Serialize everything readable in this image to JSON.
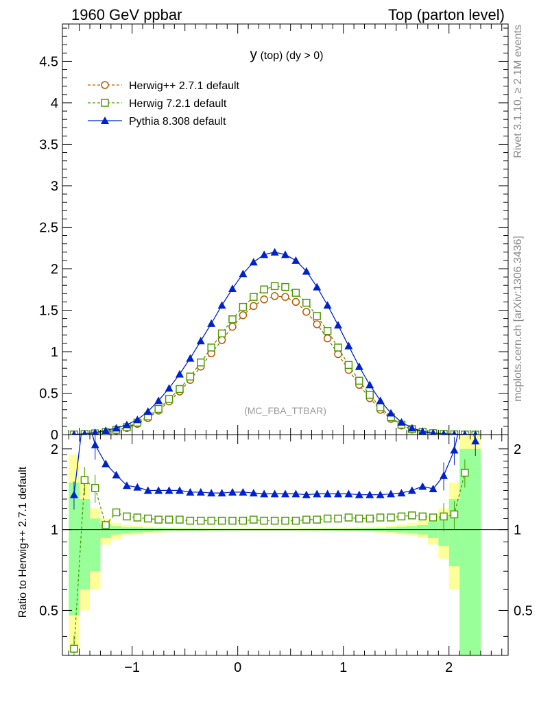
{
  "header": {
    "left_title": "1960 GeV ppbar",
    "right_title": "Top (parton level)"
  },
  "side_labels": {
    "rivet": "Rivet 3.1.10, ≥ 2.1M events",
    "mcplots": "mcplots.cern.ch [arXiv:1306.3436]"
  },
  "plot_title": {
    "main": "y",
    "sub": " (top) (dy > 0)"
  },
  "analysis_label": "(MC_FBA_TTBAR)",
  "ratio_ylabel": "Ratio to Herwig++ 2.7.1 default",
  "legend": [
    {
      "name": "Herwig++ 2.7.1 default",
      "color": "#b35900",
      "marker": "circle-open",
      "dash": true
    },
    {
      "name": "Herwig 7.2.1 default",
      "color": "#4d9900",
      "marker": "square-open",
      "dash": true
    },
    {
      "name": "Pythia 8.308 default",
      "color": "#0022cc",
      "marker": "triangle-filled",
      "dash": false
    }
  ],
  "bands": {
    "inner": "#99ff99",
    "outer": "#ffff99"
  },
  "chart_data": [
    {
      "type": "line",
      "panel": "main",
      "xlim": [
        -1.66,
        2.56
      ],
      "ylim": [
        0,
        4.95
      ],
      "yticks": [
        0,
        0.5,
        1,
        1.5,
        2,
        2.5,
        3,
        3.5,
        4,
        4.5
      ],
      "ytick_labels": [
        "0",
        "0.5",
        "1",
        "1.5",
        "2",
        "2.5",
        "3",
        "3.5",
        "4",
        "4.5"
      ],
      "x": [
        -1.55,
        -1.45,
        -1.35,
        -1.25,
        -1.15,
        -1.05,
        -0.95,
        -0.85,
        -0.75,
        -0.65,
        -0.55,
        -0.45,
        -0.35,
        -0.25,
        -0.15,
        -0.05,
        0.05,
        0.15,
        0.25,
        0.35,
        0.45,
        0.55,
        0.65,
        0.75,
        0.85,
        0.95,
        1.05,
        1.15,
        1.25,
        1.35,
        1.45,
        1.55,
        1.65,
        1.75,
        1.85,
        1.95,
        2.05,
        2.15,
        2.25
      ],
      "series": [
        {
          "name": "Herwig++ 2.7.1 default",
          "values": [
            0.002,
            0.005,
            0.012,
            0.03,
            0.05,
            0.08,
            0.13,
            0.2,
            0.29,
            0.4,
            0.52,
            0.66,
            0.82,
            0.98,
            1.14,
            1.3,
            1.44,
            1.55,
            1.63,
            1.67,
            1.66,
            1.6,
            1.48,
            1.33,
            1.16,
            0.97,
            0.78,
            0.6,
            0.44,
            0.3,
            0.19,
            0.11,
            0.06,
            0.03,
            0.015,
            0.007,
            0.003,
            0.001,
            0.0005
          ]
        },
        {
          "name": "Herwig 7.2.1 default",
          "values": [
            0.002,
            0.006,
            0.015,
            0.032,
            0.058,
            0.09,
            0.145,
            0.22,
            0.31,
            0.43,
            0.55,
            0.7,
            0.87,
            1.05,
            1.22,
            1.39,
            1.54,
            1.66,
            1.75,
            1.79,
            1.78,
            1.71,
            1.59,
            1.43,
            1.25,
            1.05,
            0.84,
            0.65,
            0.48,
            0.33,
            0.21,
            0.12,
            0.066,
            0.034,
            0.017,
            0.008,
            0.004,
            0.0015,
            0.0006
          ]
        },
        {
          "name": "Pythia 8.308 default",
          "values": [
            0.003,
            0.01,
            0.025,
            0.05,
            0.08,
            0.12,
            0.18,
            0.28,
            0.41,
            0.56,
            0.73,
            0.92,
            1.13,
            1.34,
            1.56,
            1.76,
            1.94,
            2.08,
            2.17,
            2.2,
            2.17,
            2.1,
            1.97,
            1.78,
            1.56,
            1.32,
            1.07,
            0.82,
            0.6,
            0.41,
            0.26,
            0.15,
            0.08,
            0.04,
            0.02,
            0.01,
            0.005,
            0.002,
            0.001
          ]
        }
      ]
    },
    {
      "type": "line",
      "panel": "ratio",
      "xlim": [
        -1.66,
        2.56
      ],
      "ylim": [
        0.34,
        2.26
      ],
      "log_y": true,
      "yticks": [
        0.5,
        1,
        2
      ],
      "ytick_labels": [
        "0.5",
        "1",
        "2"
      ],
      "xticks": [
        -1,
        0,
        1,
        2
      ],
      "xtick_labels": [
        "−1",
        "0",
        "1",
        "2"
      ],
      "x": [
        -1.55,
        -1.45,
        -1.35,
        -1.25,
        -1.15,
        -1.05,
        -0.95,
        -0.85,
        -0.75,
        -0.65,
        -0.55,
        -0.45,
        -0.35,
        -0.25,
        -0.15,
        -0.05,
        0.05,
        0.15,
        0.25,
        0.35,
        0.45,
        0.55,
        0.65,
        0.75,
        0.85,
        0.95,
        1.05,
        1.15,
        1.25,
        1.35,
        1.45,
        1.55,
        1.65,
        1.75,
        1.85,
        1.95,
        2.05,
        2.15,
        2.25
      ],
      "series": [
        {
          "name": "Herwig 7.2.1 default",
          "values": [
            0.36,
            1.53,
            1.43,
            1.04,
            1.16,
            1.12,
            1.11,
            1.1,
            1.09,
            1.09,
            1.09,
            1.08,
            1.08,
            1.08,
            1.08,
            1.08,
            1.08,
            1.09,
            1.08,
            1.08,
            1.08,
            1.08,
            1.09,
            1.09,
            1.1,
            1.1,
            1.11,
            1.1,
            1.1,
            1.11,
            1.11,
            1.12,
            1.13,
            1.12,
            1.11,
            1.12,
            1.14,
            1.63,
            null
          ]
        },
        {
          "name": "Pythia 8.308 default",
          "values": [
            1.35,
            2.9,
            2.07,
            1.76,
            1.6,
            1.46,
            1.44,
            1.4,
            1.4,
            1.4,
            1.4,
            1.38,
            1.38,
            1.37,
            1.37,
            1.38,
            1.38,
            1.37,
            1.36,
            1.36,
            1.36,
            1.36,
            1.35,
            1.36,
            1.36,
            1.36,
            1.36,
            1.35,
            1.35,
            1.35,
            1.36,
            1.37,
            1.4,
            1.45,
            1.42,
            1.59,
            1.98,
            3.0,
            2.14
          ]
        }
      ],
      "band_x_edges": [
        -1.6,
        -1.5,
        -1.4,
        -1.3,
        -1.2,
        -1.1,
        -1.0,
        -0.9,
        -0.8,
        -0.7,
        -0.6,
        -0.5,
        -0.4,
        -0.3,
        -0.2,
        -0.1,
        0.0,
        0.1,
        0.2,
        0.3,
        0.4,
        0.5,
        0.6,
        0.7,
        0.8,
        0.9,
        1.0,
        1.1,
        1.2,
        1.3,
        1.4,
        1.5,
        1.6,
        1.7,
        1.8,
        1.9,
        2.0,
        2.1,
        2.2,
        2.3
      ],
      "band_inner": [
        0.48,
        0.6,
        0.7,
        0.93,
        0.96,
        0.97,
        0.975,
        0.98,
        0.985,
        0.99,
        0.99,
        0.99,
        0.99,
        0.992,
        0.992,
        0.993,
        0.993,
        0.993,
        0.993,
        0.993,
        0.993,
        0.993,
        0.993,
        0.992,
        0.992,
        0.991,
        0.99,
        0.99,
        0.988,
        0.985,
        0.98,
        0.975,
        0.97,
        0.96,
        0.93,
        0.87,
        0.73,
        0.34,
        0.34
      ],
      "band_outer": [
        0.35,
        0.5,
        0.6,
        0.88,
        0.92,
        0.95,
        0.96,
        0.97,
        0.975,
        0.98,
        0.985,
        0.987,
        0.988,
        0.99,
        0.99,
        0.99,
        0.99,
        0.99,
        0.99,
        0.99,
        0.99,
        0.99,
        0.99,
        0.99,
        0.989,
        0.988,
        0.986,
        0.984,
        0.98,
        0.975,
        0.97,
        0.96,
        0.95,
        0.93,
        0.88,
        0.78,
        0.6,
        0.34,
        0.34
      ],
      "band_inner_upper": [
        1.5,
        1.3,
        1.1,
        1.05,
        1.03,
        1.02,
        1.02,
        1.015,
        1.013,
        1.012,
        1.01,
        1.01,
        1.008,
        1.008,
        1.007,
        1.007,
        1.007,
        1.007,
        1.007,
        1.007,
        1.007,
        1.007,
        1.008,
        1.008,
        1.009,
        1.01,
        1.01,
        1.012,
        1.013,
        1.015,
        1.02,
        1.025,
        1.03,
        1.04,
        1.07,
        1.12,
        1.3,
        2.0,
        2.0
      ],
      "band_outer_upper": [
        1.9,
        1.5,
        1.2,
        1.1,
        1.06,
        1.04,
        1.035,
        1.03,
        1.025,
        1.02,
        1.018,
        1.015,
        1.013,
        1.012,
        1.011,
        1.011,
        1.011,
        1.011,
        1.011,
        1.011,
        1.011,
        1.012,
        1.013,
        1.014,
        1.015,
        1.017,
        1.02,
        1.022,
        1.025,
        1.03,
        1.035,
        1.045,
        1.06,
        1.08,
        1.12,
        1.2,
        1.5,
        2.26,
        2.26
      ]
    }
  ]
}
